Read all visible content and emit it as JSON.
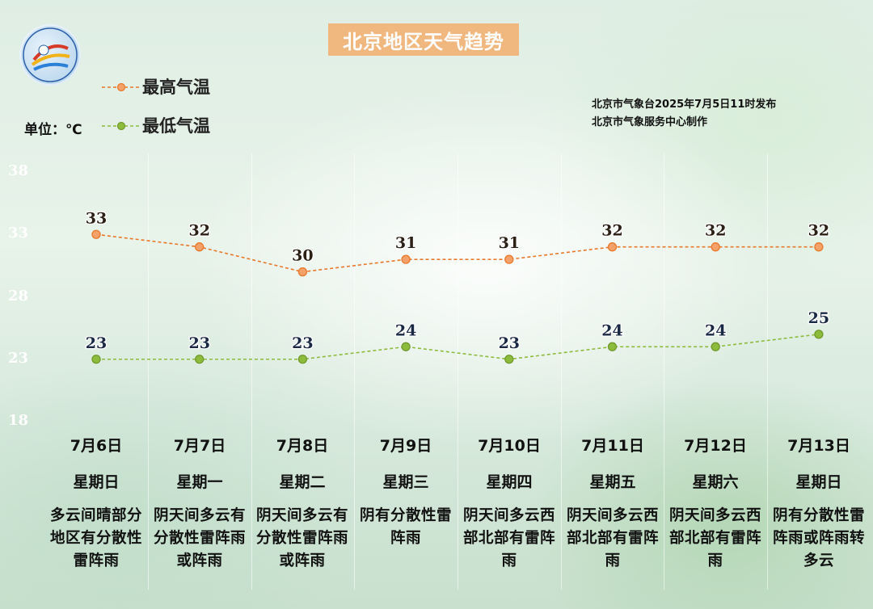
{
  "title": "北京地区天气趋势",
  "unit_label": "单位：℃",
  "legend": [
    {
      "label": "最高气温",
      "color": "#e8782a"
    },
    {
      "label": "最低气温",
      "color": "#8dbb3c"
    }
  ],
  "issuer": {
    "line1": "北京市气象台2025年7月5日11时发布",
    "line2": "北京市气象服务中心制作"
  },
  "chart_data": {
    "type": "line",
    "categories": [
      "7月6日",
      "7月7日",
      "7月8日",
      "7月9日",
      "7月10日",
      "7月11日",
      "7月12日",
      "7月13日"
    ],
    "weekdays": [
      "星期日",
      "星期一",
      "星期二",
      "星期三",
      "星期四",
      "星期五",
      "星期六",
      "星期日"
    ],
    "weather": [
      "多云间晴部分地区有分散性雷阵雨",
      "阴天间多云有分散性雷阵雨或阵雨",
      "阴天间多云有分散性雷阵雨或阵雨",
      "阴有分散性雷阵雨",
      "阴天间多云西部北部有雷阵雨",
      "阴天间多云西部北部有雷阵雨",
      "阴天间多云西部北部有雷阵雨",
      "阴有分散性雷阵雨或阵雨转多云"
    ],
    "series": [
      {
        "name": "最高气温",
        "values": [
          33,
          32,
          30,
          31,
          31,
          32,
          32,
          32
        ],
        "color": "#e8782a",
        "label_color": "#2a2015"
      },
      {
        "name": "最低气温",
        "values": [
          23,
          23,
          23,
          24,
          23,
          24,
          24,
          25
        ],
        "color": "#8dbb3c",
        "label_color": "#1b2a44"
      }
    ],
    "yticks": [
      38,
      33,
      28,
      23,
      18
    ],
    "ylim": [
      18,
      38
    ],
    "grid": false,
    "legend_position": "top-left"
  }
}
